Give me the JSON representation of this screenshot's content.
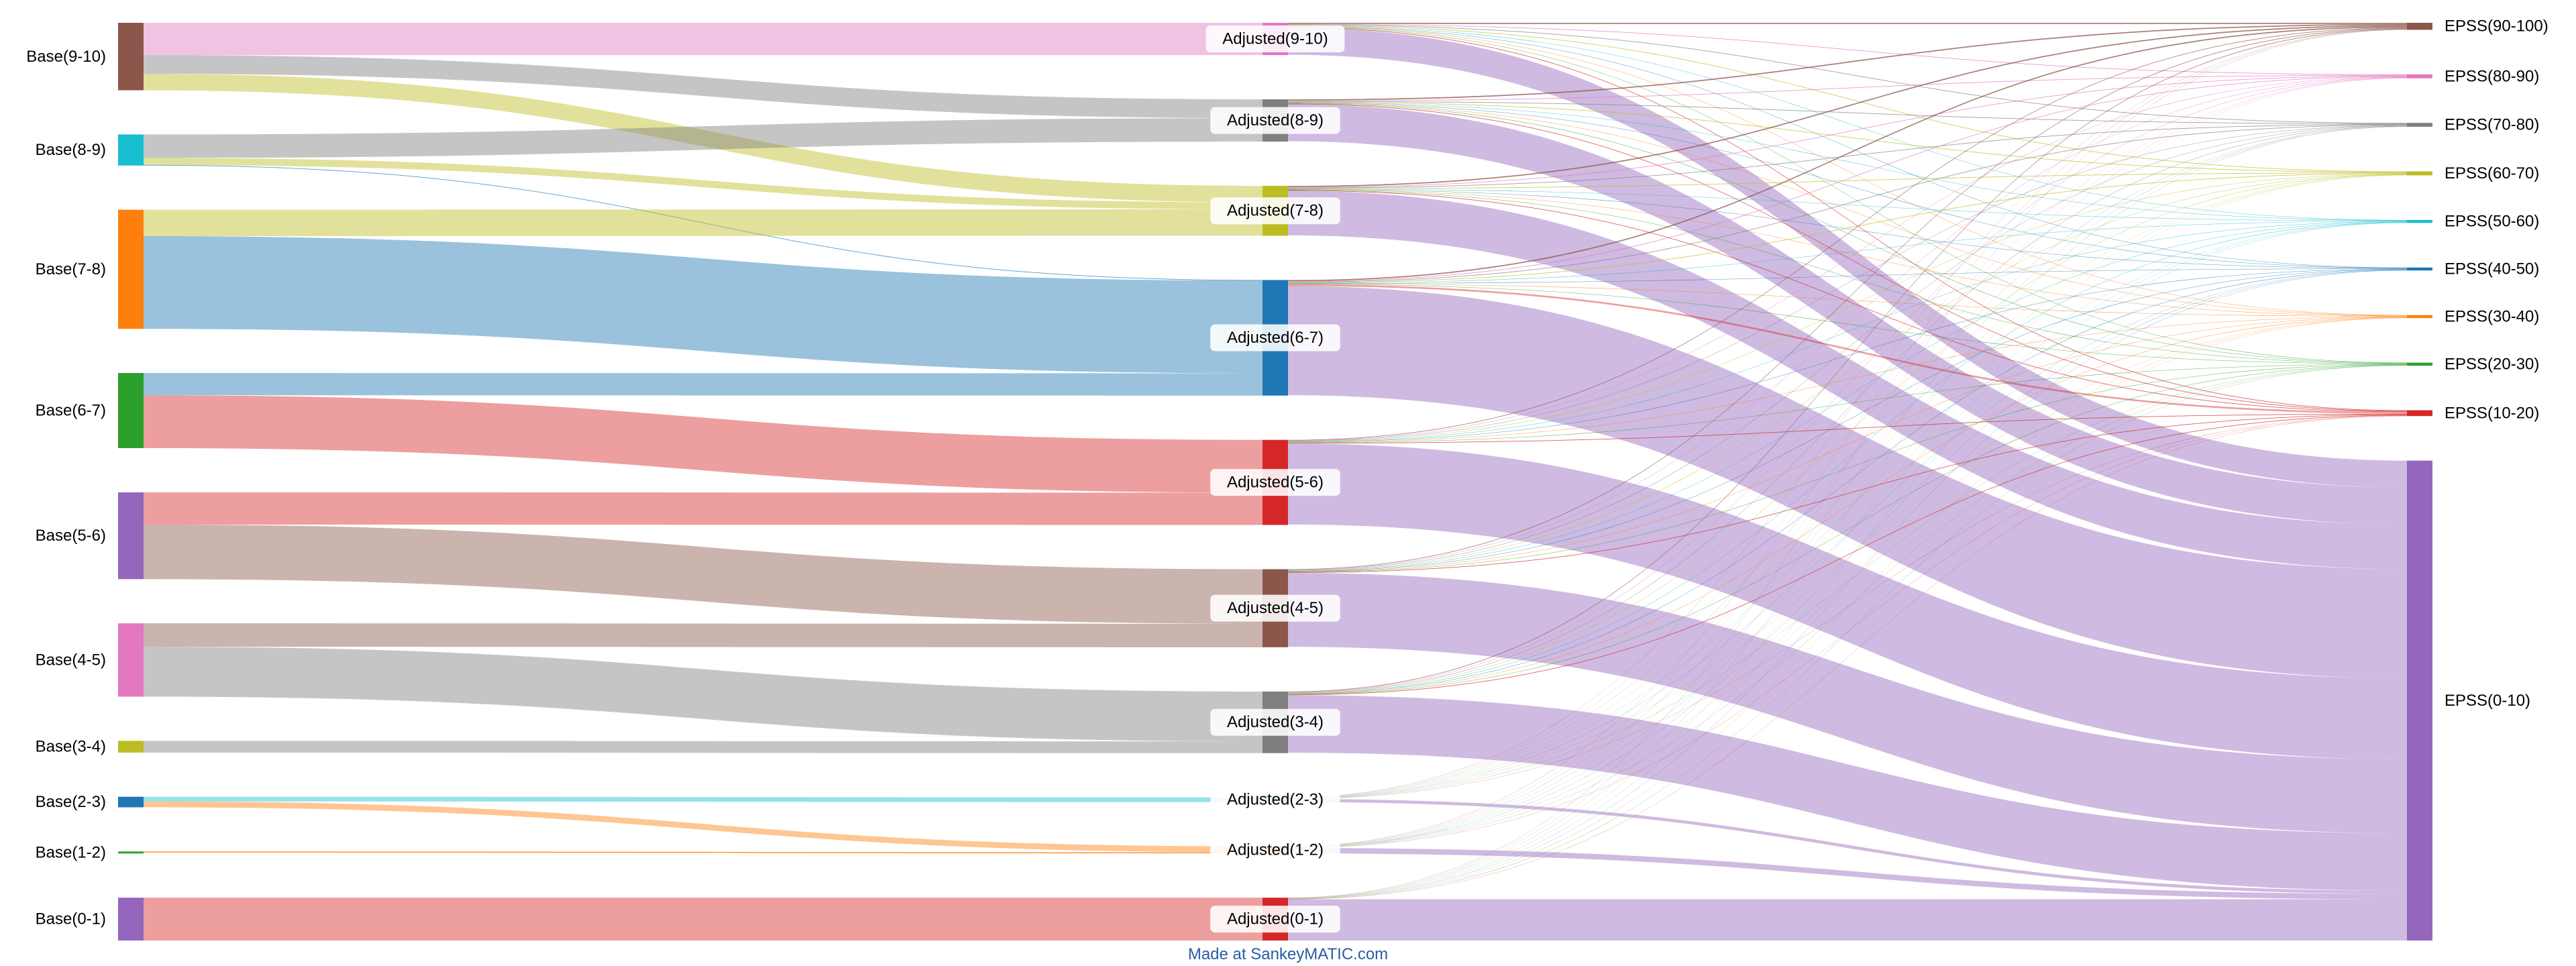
{
  "credit": "Made at SankeyMATIC.com",
  "chart_data": {
    "type": "sankey",
    "columns": [
      [
        {
          "id": "b910",
          "label": "Base(9-10)",
          "color": "#8c564b"
        },
        {
          "id": "b89",
          "label": "Base(8-9)",
          "color": "#17becf"
        },
        {
          "id": "b78",
          "label": "Base(7-8)",
          "color": "#ff7f0e"
        },
        {
          "id": "b67",
          "label": "Base(6-7)",
          "color": "#2ca02c"
        },
        {
          "id": "b56",
          "label": "Base(5-6)",
          "color": "#9467bd"
        },
        {
          "id": "b45",
          "label": "Base(4-5)",
          "color": "#e377c2"
        },
        {
          "id": "b34",
          "label": "Base(3-4)",
          "color": "#bcbd22"
        },
        {
          "id": "b23",
          "label": "Base(2-3)",
          "color": "#1f77b4"
        },
        {
          "id": "b12",
          "label": "Base(1-2)",
          "color": "#2ca02c"
        },
        {
          "id": "b01",
          "label": "Base(0-1)",
          "color": "#9467bd"
        }
      ],
      [
        {
          "id": "a910",
          "label": "Adjusted(9-10)",
          "color": "#e377c2"
        },
        {
          "id": "a89",
          "label": "Adjusted(8-9)",
          "color": "#7f7f7f"
        },
        {
          "id": "a78",
          "label": "Adjusted(7-8)",
          "color": "#bcbd22"
        },
        {
          "id": "a67",
          "label": "Adjusted(6-7)",
          "color": "#1f77b4"
        },
        {
          "id": "a56",
          "label": "Adjusted(5-6)",
          "color": "#d62728"
        },
        {
          "id": "a45",
          "label": "Adjusted(4-5)",
          "color": "#8c564b"
        },
        {
          "id": "a34",
          "label": "Adjusted(3-4)",
          "color": "#7f7f7f"
        },
        {
          "id": "a23",
          "label": "Adjusted(2-3)",
          "color": "#17becf"
        },
        {
          "id": "a12",
          "label": "Adjusted(1-2)",
          "color": "#ff7f0e"
        },
        {
          "id": "a01",
          "label": "Adjusted(0-1)",
          "color": "#d62728"
        }
      ],
      [
        {
          "id": "e90",
          "label": "EPSS(90-100)",
          "color": "#8c564b"
        },
        {
          "id": "e80",
          "label": "EPSS(80-90)",
          "color": "#e377c2"
        },
        {
          "id": "e70",
          "label": "EPSS(70-80)",
          "color": "#7f7f7f"
        },
        {
          "id": "e60",
          "label": "EPSS(60-70)",
          "color": "#bcbd22"
        },
        {
          "id": "e50",
          "label": "EPSS(50-60)",
          "color": "#17becf"
        },
        {
          "id": "e40",
          "label": "EPSS(40-50)",
          "color": "#1f77b4"
        },
        {
          "id": "e30",
          "label": "EPSS(30-40)",
          "color": "#ff7f0e"
        },
        {
          "id": "e20",
          "label": "EPSS(20-30)",
          "color": "#2ca02c"
        },
        {
          "id": "e10",
          "label": "EPSS(10-20)",
          "color": "#d62728"
        },
        {
          "id": "e0",
          "label": "EPSS(0-10)",
          "color": "#9467bd"
        }
      ]
    ],
    "flows": [
      {
        "s": "b910",
        "t": "a910",
        "v": 55
      },
      {
        "s": "b910",
        "t": "a89",
        "v": 32
      },
      {
        "s": "b910",
        "t": "a78",
        "v": 28
      },
      {
        "s": "b89",
        "t": "a89",
        "v": 40
      },
      {
        "s": "b89",
        "t": "a78",
        "v": 12
      },
      {
        "s": "b89",
        "t": "a67",
        "v": 1
      },
      {
        "s": "b78",
        "t": "a78",
        "v": 45
      },
      {
        "s": "b78",
        "t": "a67",
        "v": 158
      },
      {
        "s": "b67",
        "t": "a67",
        "v": 38
      },
      {
        "s": "b67",
        "t": "a56",
        "v": 90
      },
      {
        "s": "b56",
        "t": "a56",
        "v": 55
      },
      {
        "s": "b56",
        "t": "a45",
        "v": 93
      },
      {
        "s": "b45",
        "t": "a45",
        "v": 40
      },
      {
        "s": "b45",
        "t": "a34",
        "v": 85
      },
      {
        "s": "b34",
        "t": "a34",
        "v": 20
      },
      {
        "s": "b23",
        "t": "a23",
        "v": 8
      },
      {
        "s": "b23",
        "t": "a12",
        "v": 10
      },
      {
        "s": "b12",
        "t": "a12",
        "v": 2
      },
      {
        "s": "b01",
        "t": "a01",
        "v": 73
      },
      {
        "s": "a910",
        "t": "e90",
        "v": 2
      },
      {
        "s": "a910",
        "t": "e80",
        "v": 1
      },
      {
        "s": "a910",
        "t": "e70",
        "v": 1
      },
      {
        "s": "a910",
        "t": "e60",
        "v": 1
      },
      {
        "s": "a910",
        "t": "e50",
        "v": 0.6
      },
      {
        "s": "a910",
        "t": "e40",
        "v": 0.6
      },
      {
        "s": "a910",
        "t": "e30",
        "v": 0.6
      },
      {
        "s": "a910",
        "t": "e20",
        "v": 0.6
      },
      {
        "s": "a910",
        "t": "e10",
        "v": 1
      },
      {
        "s": "a910",
        "t": "e0",
        "v": 46
      },
      {
        "s": "a89",
        "t": "e90",
        "v": 2
      },
      {
        "s": "a89",
        "t": "e80",
        "v": 1
      },
      {
        "s": "a89",
        "t": "e70",
        "v": 1
      },
      {
        "s": "a89",
        "t": "e60",
        "v": 1
      },
      {
        "s": "a89",
        "t": "e50",
        "v": 0.6
      },
      {
        "s": "a89",
        "t": "e40",
        "v": 0.6
      },
      {
        "s": "a89",
        "t": "e30",
        "v": 0.6
      },
      {
        "s": "a89",
        "t": "e20",
        "v": 0.6
      },
      {
        "s": "a89",
        "t": "e10",
        "v": 1
      },
      {
        "s": "a89",
        "t": "e0",
        "v": 63
      },
      {
        "s": "a78",
        "t": "e90",
        "v": 2
      },
      {
        "s": "a78",
        "t": "e80",
        "v": 1
      },
      {
        "s": "a78",
        "t": "e70",
        "v": 1
      },
      {
        "s": "a78",
        "t": "e60",
        "v": 1
      },
      {
        "s": "a78",
        "t": "e50",
        "v": 0.6
      },
      {
        "s": "a78",
        "t": "e40",
        "v": 0.6
      },
      {
        "s": "a78",
        "t": "e30",
        "v": 0.6
      },
      {
        "s": "a78",
        "t": "e20",
        "v": 0.6
      },
      {
        "s": "a78",
        "t": "e10",
        "v": 1
      },
      {
        "s": "a78",
        "t": "e0",
        "v": 76
      },
      {
        "s": "a67",
        "t": "e90",
        "v": 2
      },
      {
        "s": "a67",
        "t": "e80",
        "v": 1
      },
      {
        "s": "a67",
        "t": "e70",
        "v": 1
      },
      {
        "s": "a67",
        "t": "e60",
        "v": 1
      },
      {
        "s": "a67",
        "t": "e50",
        "v": 0.6
      },
      {
        "s": "a67",
        "t": "e40",
        "v": 0.6
      },
      {
        "s": "a67",
        "t": "e30",
        "v": 0.6
      },
      {
        "s": "a67",
        "t": "e20",
        "v": 0.6
      },
      {
        "s": "a67",
        "t": "e10",
        "v": 3
      },
      {
        "s": "a67",
        "t": "e0",
        "v": 186
      },
      {
        "s": "a56",
        "t": "e90",
        "v": 1
      },
      {
        "s": "a56",
        "t": "e80",
        "v": 0.6
      },
      {
        "s": "a56",
        "t": "e70",
        "v": 0.6
      },
      {
        "s": "a56",
        "t": "e60",
        "v": 0.6
      },
      {
        "s": "a56",
        "t": "e50",
        "v": 0.6
      },
      {
        "s": "a56",
        "t": "e40",
        "v": 0.6
      },
      {
        "s": "a56",
        "t": "e30",
        "v": 0.6
      },
      {
        "s": "a56",
        "t": "e20",
        "v": 0.6
      },
      {
        "s": "a56",
        "t": "e10",
        "v": 1
      },
      {
        "s": "a56",
        "t": "e0",
        "v": 138
      },
      {
        "s": "a45",
        "t": "e90",
        "v": 1
      },
      {
        "s": "a45",
        "t": "e80",
        "v": 0.6
      },
      {
        "s": "a45",
        "t": "e70",
        "v": 0.6
      },
      {
        "s": "a45",
        "t": "e60",
        "v": 0.6
      },
      {
        "s": "a45",
        "t": "e50",
        "v": 0.6
      },
      {
        "s": "a45",
        "t": "e40",
        "v": 0.6
      },
      {
        "s": "a45",
        "t": "e30",
        "v": 0.6
      },
      {
        "s": "a45",
        "t": "e20",
        "v": 0.6
      },
      {
        "s": "a45",
        "t": "e10",
        "v": 1
      },
      {
        "s": "a45",
        "t": "e0",
        "v": 126
      },
      {
        "s": "a34",
        "t": "e90",
        "v": 1
      },
      {
        "s": "a34",
        "t": "e80",
        "v": 0.6
      },
      {
        "s": "a34",
        "t": "e70",
        "v": 0.6
      },
      {
        "s": "a34",
        "t": "e60",
        "v": 0.6
      },
      {
        "s": "a34",
        "t": "e50",
        "v": 0.6
      },
      {
        "s": "a34",
        "t": "e40",
        "v": 0.6
      },
      {
        "s": "a34",
        "t": "e30",
        "v": 0.6
      },
      {
        "s": "a34",
        "t": "e20",
        "v": 0.6
      },
      {
        "s": "a34",
        "t": "e10",
        "v": 1
      },
      {
        "s": "a34",
        "t": "e0",
        "v": 98
      },
      {
        "s": "a23",
        "t": "e90",
        "v": 0.3
      },
      {
        "s": "a23",
        "t": "e80",
        "v": 0.3
      },
      {
        "s": "a23",
        "t": "e70",
        "v": 0.3
      },
      {
        "s": "a23",
        "t": "e60",
        "v": 0.3
      },
      {
        "s": "a23",
        "t": "e50",
        "v": 0.3
      },
      {
        "s": "a23",
        "t": "e40",
        "v": 0.3
      },
      {
        "s": "a23",
        "t": "e30",
        "v": 0.3
      },
      {
        "s": "a23",
        "t": "e20",
        "v": 0.3
      },
      {
        "s": "a23",
        "t": "e10",
        "v": 0.3
      },
      {
        "s": "a23",
        "t": "e0",
        "v": 5.3
      },
      {
        "s": "a12",
        "t": "e90",
        "v": 0.3
      },
      {
        "s": "a12",
        "t": "e80",
        "v": 0.3
      },
      {
        "s": "a12",
        "t": "e70",
        "v": 0.3
      },
      {
        "s": "a12",
        "t": "e60",
        "v": 0.3
      },
      {
        "s": "a12",
        "t": "e50",
        "v": 0.3
      },
      {
        "s": "a12",
        "t": "e40",
        "v": 0.3
      },
      {
        "s": "a12",
        "t": "e30",
        "v": 0.3
      },
      {
        "s": "a12",
        "t": "e20",
        "v": 0.3
      },
      {
        "s": "a12",
        "t": "e10",
        "v": 0.3
      },
      {
        "s": "a12",
        "t": "e0",
        "v": 9.3
      },
      {
        "s": "a01",
        "t": "e90",
        "v": 0.3
      },
      {
        "s": "a01",
        "t": "e80",
        "v": 0.3
      },
      {
        "s": "a01",
        "t": "e70",
        "v": 0.3
      },
      {
        "s": "a01",
        "t": "e60",
        "v": 0.3
      },
      {
        "s": "a01",
        "t": "e50",
        "v": 0.3
      },
      {
        "s": "a01",
        "t": "e40",
        "v": 0.3
      },
      {
        "s": "a01",
        "t": "e30",
        "v": 0.3
      },
      {
        "s": "a01",
        "t": "e20",
        "v": 0.3
      },
      {
        "s": "a01",
        "t": "e10",
        "v": 0.3
      },
      {
        "s": "a01",
        "t": "e0",
        "v": 70.3
      }
    ]
  }
}
